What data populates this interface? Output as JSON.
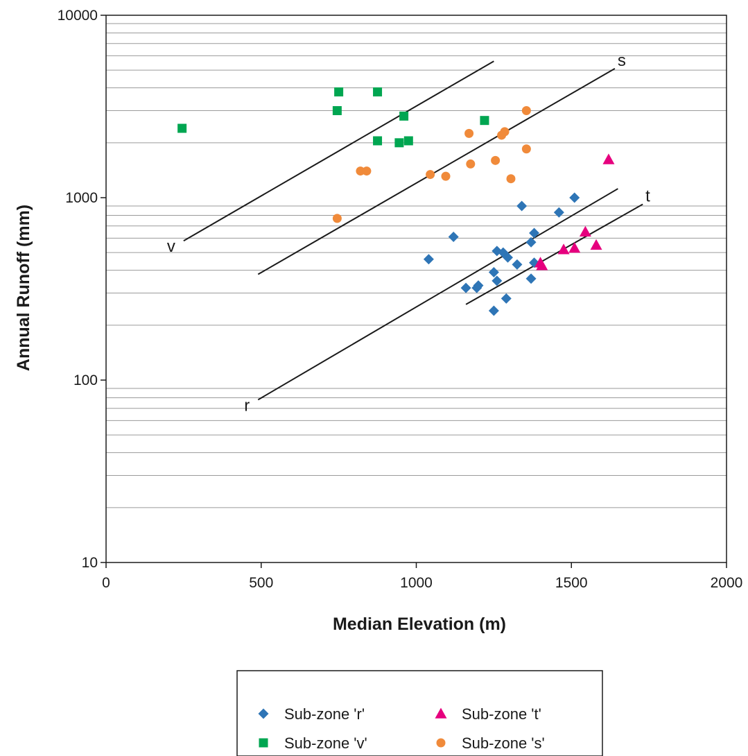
{
  "chart_data": {
    "type": "scatter",
    "xlabel": "Median Elevation (m)",
    "ylabel": "Annual Runoff (mm)",
    "xlim": [
      0,
      2000
    ],
    "ylim": [
      10,
      10000
    ],
    "yscale": "log",
    "x_ticks": [
      "0",
      "500",
      "1000",
      "1500",
      "2000"
    ],
    "y_ticks": [
      "10",
      "100",
      "1000",
      "10000"
    ],
    "grid": "horizontal minor gridlines on log axis",
    "legend_position": "bottom-center",
    "series": [
      {
        "name": "Sub-zone 'r'",
        "marker": "diamond",
        "color": "#2e75b6",
        "points": [
          [
            1040,
            460
          ],
          [
            1120,
            610
          ],
          [
            1160,
            320
          ],
          [
            1195,
            320
          ],
          [
            1200,
            330
          ],
          [
            1250,
            240
          ],
          [
            1250,
            390
          ],
          [
            1260,
            350
          ],
          [
            1260,
            510
          ],
          [
            1280,
            500
          ],
          [
            1290,
            280
          ],
          [
            1295,
            470
          ],
          [
            1325,
            430
          ],
          [
            1340,
            900
          ],
          [
            1370,
            570
          ],
          [
            1370,
            360
          ],
          [
            1380,
            440
          ],
          [
            1380,
            640
          ],
          [
            1460,
            830
          ],
          [
            1510,
            1000
          ]
        ]
      },
      {
        "name": "Sub-zone 't'",
        "marker": "triangle",
        "color": "#e6007e",
        "points": [
          [
            1400,
            440
          ],
          [
            1405,
            425
          ],
          [
            1475,
            520
          ],
          [
            1510,
            530
          ],
          [
            1545,
            650
          ],
          [
            1580,
            550
          ],
          [
            1620,
            1620
          ]
        ]
      },
      {
        "name": "Sub-zone 'v'",
        "marker": "square",
        "color": "#00a651",
        "points": [
          [
            245,
            2400
          ],
          [
            745,
            3000
          ],
          [
            750,
            3800
          ],
          [
            875,
            3800
          ],
          [
            875,
            2050
          ],
          [
            945,
            2000
          ],
          [
            960,
            2800
          ],
          [
            975,
            2050
          ],
          [
            1220,
            2650
          ]
        ]
      },
      {
        "name": "Sub-zone 's'",
        "marker": "circle",
        "color": "#f08a3a",
        "points": [
          [
            745,
            770
          ],
          [
            820,
            1400
          ],
          [
            840,
            1400
          ],
          [
            1045,
            1340
          ],
          [
            1095,
            1310
          ],
          [
            1170,
            2250
          ],
          [
            1175,
            1530
          ],
          [
            1255,
            1600
          ],
          [
            1275,
            2200
          ],
          [
            1285,
            2300
          ],
          [
            1305,
            1270
          ],
          [
            1355,
            3000
          ],
          [
            1355,
            1850
          ]
        ]
      }
    ],
    "reference_lines": [
      {
        "label": "v",
        "from": [
          250,
          580
        ],
        "to": [
          1250,
          5600
        ]
      },
      {
        "label": "s",
        "from": [
          490,
          380
        ],
        "to": [
          1640,
          5100
        ]
      },
      {
        "label": "t",
        "from": [
          1160,
          260
        ],
        "to": [
          1730,
          920
        ]
      },
      {
        "label": "r",
        "from": [
          490,
          78
        ],
        "to": [
          1650,
          1120
        ]
      }
    ]
  }
}
